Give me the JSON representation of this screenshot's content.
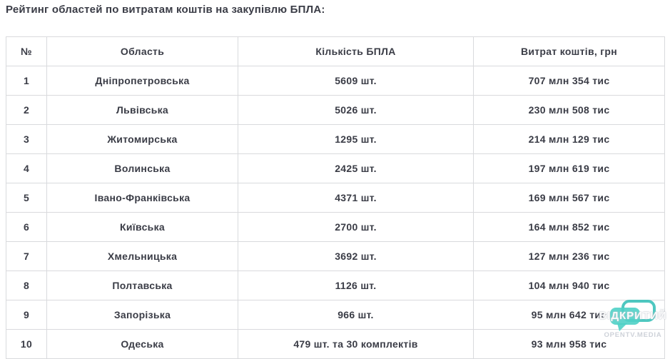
{
  "title": "Рейтинг областей по витратам коштів на закупівлю БПЛА:",
  "table": {
    "headers": [
      "№",
      "Область",
      "Кількість БПЛА",
      "Витрат коштів, грн"
    ],
    "rows": [
      [
        "1",
        "Дніпропетровська",
        "5609 шт.",
        "707 млн 354 тис"
      ],
      [
        "2",
        "Львівська",
        "5026 шт.",
        "230 млн 508 тис"
      ],
      [
        "3",
        "Житомирська",
        "1295 шт.",
        "214 млн 129 тис"
      ],
      [
        "4",
        "Волинська",
        "2425 шт.",
        "197 млн 619 тис"
      ],
      [
        "5",
        "Івано-Франківська",
        "4371 шт.",
        "169 млн 567 тис"
      ],
      [
        "6",
        "Київська",
        "2700 шт.",
        "164 млн 852 тис"
      ],
      [
        "7",
        "Хмельницька",
        "3692 шт.",
        "127 млн 236 тис"
      ],
      [
        "8",
        "Полтавська",
        "1126 шт.",
        "104 млн 940 тис"
      ],
      [
        "9",
        "Запорізька",
        "966 шт.",
        "95 млн 642 тис"
      ],
      [
        "10",
        "Одеська",
        "479 шт. та 30 комплектів",
        "93 млн 958 тис"
      ]
    ]
  },
  "watermark": {
    "logo_text": "ВІДКРИТИЙ",
    "site": "OPENTV.MEDIA",
    "icon": "speech-bubbles-icon",
    "teal": "#4fd0c7",
    "teal_dark": "#2fbdb5"
  },
  "colors": {
    "text": "#3a3c46",
    "border": "#d9dadd",
    "background": "#ffffff"
  },
  "chart_data": {
    "type": "table",
    "title": "Рейтинг областей по витратам коштів на закупівлю БПЛА:",
    "columns": [
      "№",
      "Область",
      "Кількість БПЛА",
      "Витрат коштів, грн"
    ],
    "rows": [
      [
        "1",
        "Дніпропетровська",
        "5609 шт.",
        "707 млн 354 тис"
      ],
      [
        "2",
        "Львівська",
        "5026 шт.",
        "230 млн 508 тис"
      ],
      [
        "3",
        "Житомирська",
        "1295 шт.",
        "214 млн 129 тис"
      ],
      [
        "4",
        "Волинська",
        "2425 шт.",
        "197 млн 619 тис"
      ],
      [
        "5",
        "Івано-Франківська",
        "4371 шт.",
        "169 млн 567 тис"
      ],
      [
        "6",
        "Київська",
        "2700 шт.",
        "164 млн 852 тис"
      ],
      [
        "7",
        "Хмельницька",
        "3692 шт.",
        "127 млн 236 тис"
      ],
      [
        "8",
        "Полтавська",
        "1126 шт.",
        "104 млн 940 тис"
      ],
      [
        "9",
        "Запорізька",
        "966 шт.",
        "95 млн 642 тис"
      ],
      [
        "10",
        "Одеська",
        "479 шт. та 30 комплектів",
        "93 млн 958 тис"
      ]
    ]
  }
}
